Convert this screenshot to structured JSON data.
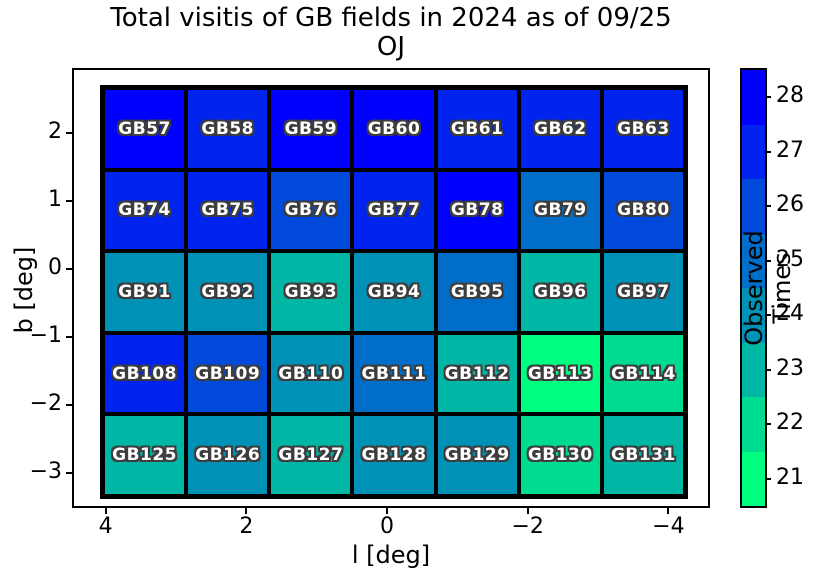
{
  "title": {
    "line1": "Total visitis of GB fields in 2024 as of 09/25",
    "line2": "OJ"
  },
  "chart_data": {
    "type": "heatmap",
    "title": "Total visitis of GB fields in 2024 as of 09/25",
    "subtitle": "OJ",
    "xlabel": "l [deg]",
    "ylabel": "b [deg]",
    "colorbar_label": "Observed Times",
    "x_ticks": [
      4,
      2,
      0,
      -2,
      -4
    ],
    "y_ticks": [
      2,
      1,
      0,
      -1,
      -2,
      -3
    ],
    "xlim": [
      4.45,
      -4.62
    ],
    "ylim": [
      -3.55,
      2.92
    ],
    "x_axis_inverted": true,
    "grid_extent_deg": {
      "l_left": 4.05,
      "l_right": -4.3,
      "b_top": 2.67,
      "b_bottom": -3.4
    },
    "colorbar_ticks": [
      28,
      27,
      26,
      25,
      24,
      23,
      22,
      21
    ],
    "colorbar_range": [
      20.5,
      28.5
    ],
    "colormap_name": "winter (8 discrete levels)",
    "colormap": {
      "21": "#00FF80",
      "22": "#00DB92",
      "23": "#00B6A4",
      "24": "#0092B6",
      "25": "#006DC8",
      "26": "#0049DB",
      "27": "#0024ED",
      "28": "#0000FF"
    },
    "rows": [
      {
        "fields": [
          {
            "label": "GB57",
            "value": 28
          },
          {
            "label": "GB58",
            "value": 27
          },
          {
            "label": "GB59",
            "value": 28
          },
          {
            "label": "GB60",
            "value": 28
          },
          {
            "label": "GB61",
            "value": 27
          },
          {
            "label": "GB62",
            "value": 27
          },
          {
            "label": "GB63",
            "value": 27
          }
        ]
      },
      {
        "fields": [
          {
            "label": "GB74",
            "value": 27
          },
          {
            "label": "GB75",
            "value": 27
          },
          {
            "label": "GB76",
            "value": 26
          },
          {
            "label": "GB77",
            "value": 27
          },
          {
            "label": "GB78",
            "value": 28
          },
          {
            "label": "GB79",
            "value": 25
          },
          {
            "label": "GB80",
            "value": 26
          }
        ]
      },
      {
        "fields": [
          {
            "label": "GB91",
            "value": 24
          },
          {
            "label": "GB92",
            "value": 24
          },
          {
            "label": "GB93",
            "value": 23
          },
          {
            "label": "GB94",
            "value": 24
          },
          {
            "label": "GB95",
            "value": 25
          },
          {
            "label": "GB96",
            "value": 23
          },
          {
            "label": "GB97",
            "value": 24
          }
        ]
      },
      {
        "fields": [
          {
            "label": "GB108",
            "value": 27
          },
          {
            "label": "GB109",
            "value": 26
          },
          {
            "label": "GB110",
            "value": 24
          },
          {
            "label": "GB111",
            "value": 25
          },
          {
            "label": "GB112",
            "value": 23
          },
          {
            "label": "GB113",
            "value": 21
          },
          {
            "label": "GB114",
            "value": 22
          }
        ]
      },
      {
        "fields": [
          {
            "label": "GB125",
            "value": 23
          },
          {
            "label": "GB126",
            "value": 24
          },
          {
            "label": "GB127",
            "value": 23
          },
          {
            "label": "GB128",
            "value": 24
          },
          {
            "label": "GB129",
            "value": 24
          },
          {
            "label": "GB130",
            "value": 22
          },
          {
            "label": "GB131",
            "value": 23
          }
        ]
      }
    ]
  }
}
